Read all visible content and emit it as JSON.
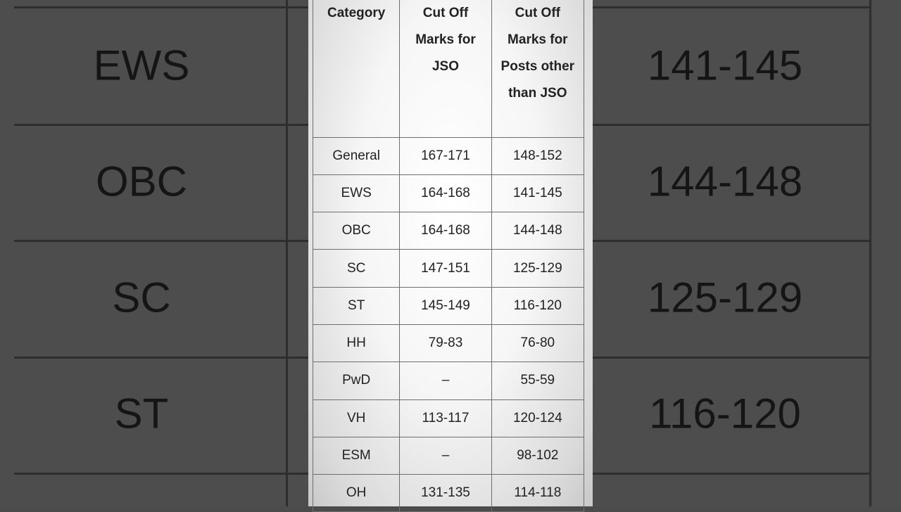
{
  "table": {
    "headers": [
      "Category",
      "Cut Off Marks for JSO",
      "Cut Off Marks for Posts other than JSO"
    ],
    "rows": [
      [
        "General",
        "167-171",
        "148-152"
      ],
      [
        "EWS",
        "164-168",
        "141-145"
      ],
      [
        "OBC",
        "164-168",
        "144-148"
      ],
      [
        "SC",
        "147-151",
        "125-129"
      ],
      [
        "ST",
        "145-149",
        "116-120"
      ],
      [
        "HH",
        "79-83",
        "76-80"
      ],
      [
        "PwD",
        "–",
        "55-59"
      ],
      [
        "VH",
        "113-117",
        "120-124"
      ],
      [
        "ESM",
        "–",
        "98-102"
      ],
      [
        "OH",
        "131-135",
        "114-118"
      ]
    ]
  },
  "background_zoom": {
    "left": [
      "EWS",
      "OBC",
      "SC",
      "ST"
    ],
    "right": [
      "141-145",
      "144-148",
      "125-129",
      "116-120"
    ]
  }
}
